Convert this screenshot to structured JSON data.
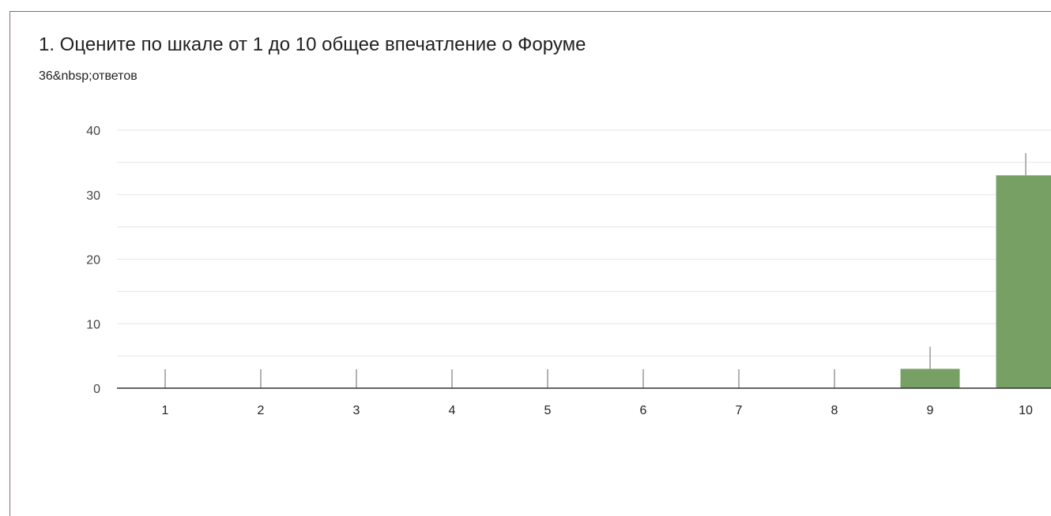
{
  "question": {
    "title": "1. Оцените по шкале от 1 до 10 общее впечатление о Форуме",
    "responses": "36&nbsp;ответов"
  },
  "colors": {
    "bar": "#77a065",
    "grid": "#e6e6e6",
    "axis": "#333333",
    "whisker": "#999999"
  },
  "chart_data": {
    "type": "bar",
    "categories": [
      "1",
      "2",
      "3",
      "4",
      "5",
      "6",
      "7",
      "8",
      "9",
      "10"
    ],
    "values": [
      0,
      0,
      0,
      0,
      0,
      0,
      0,
      0,
      3,
      33
    ],
    "y_ticks": [
      "0",
      "10",
      "20",
      "30",
      "40"
    ],
    "ylim": [
      0,
      40
    ],
    "grid": true,
    "legend": "none"
  }
}
